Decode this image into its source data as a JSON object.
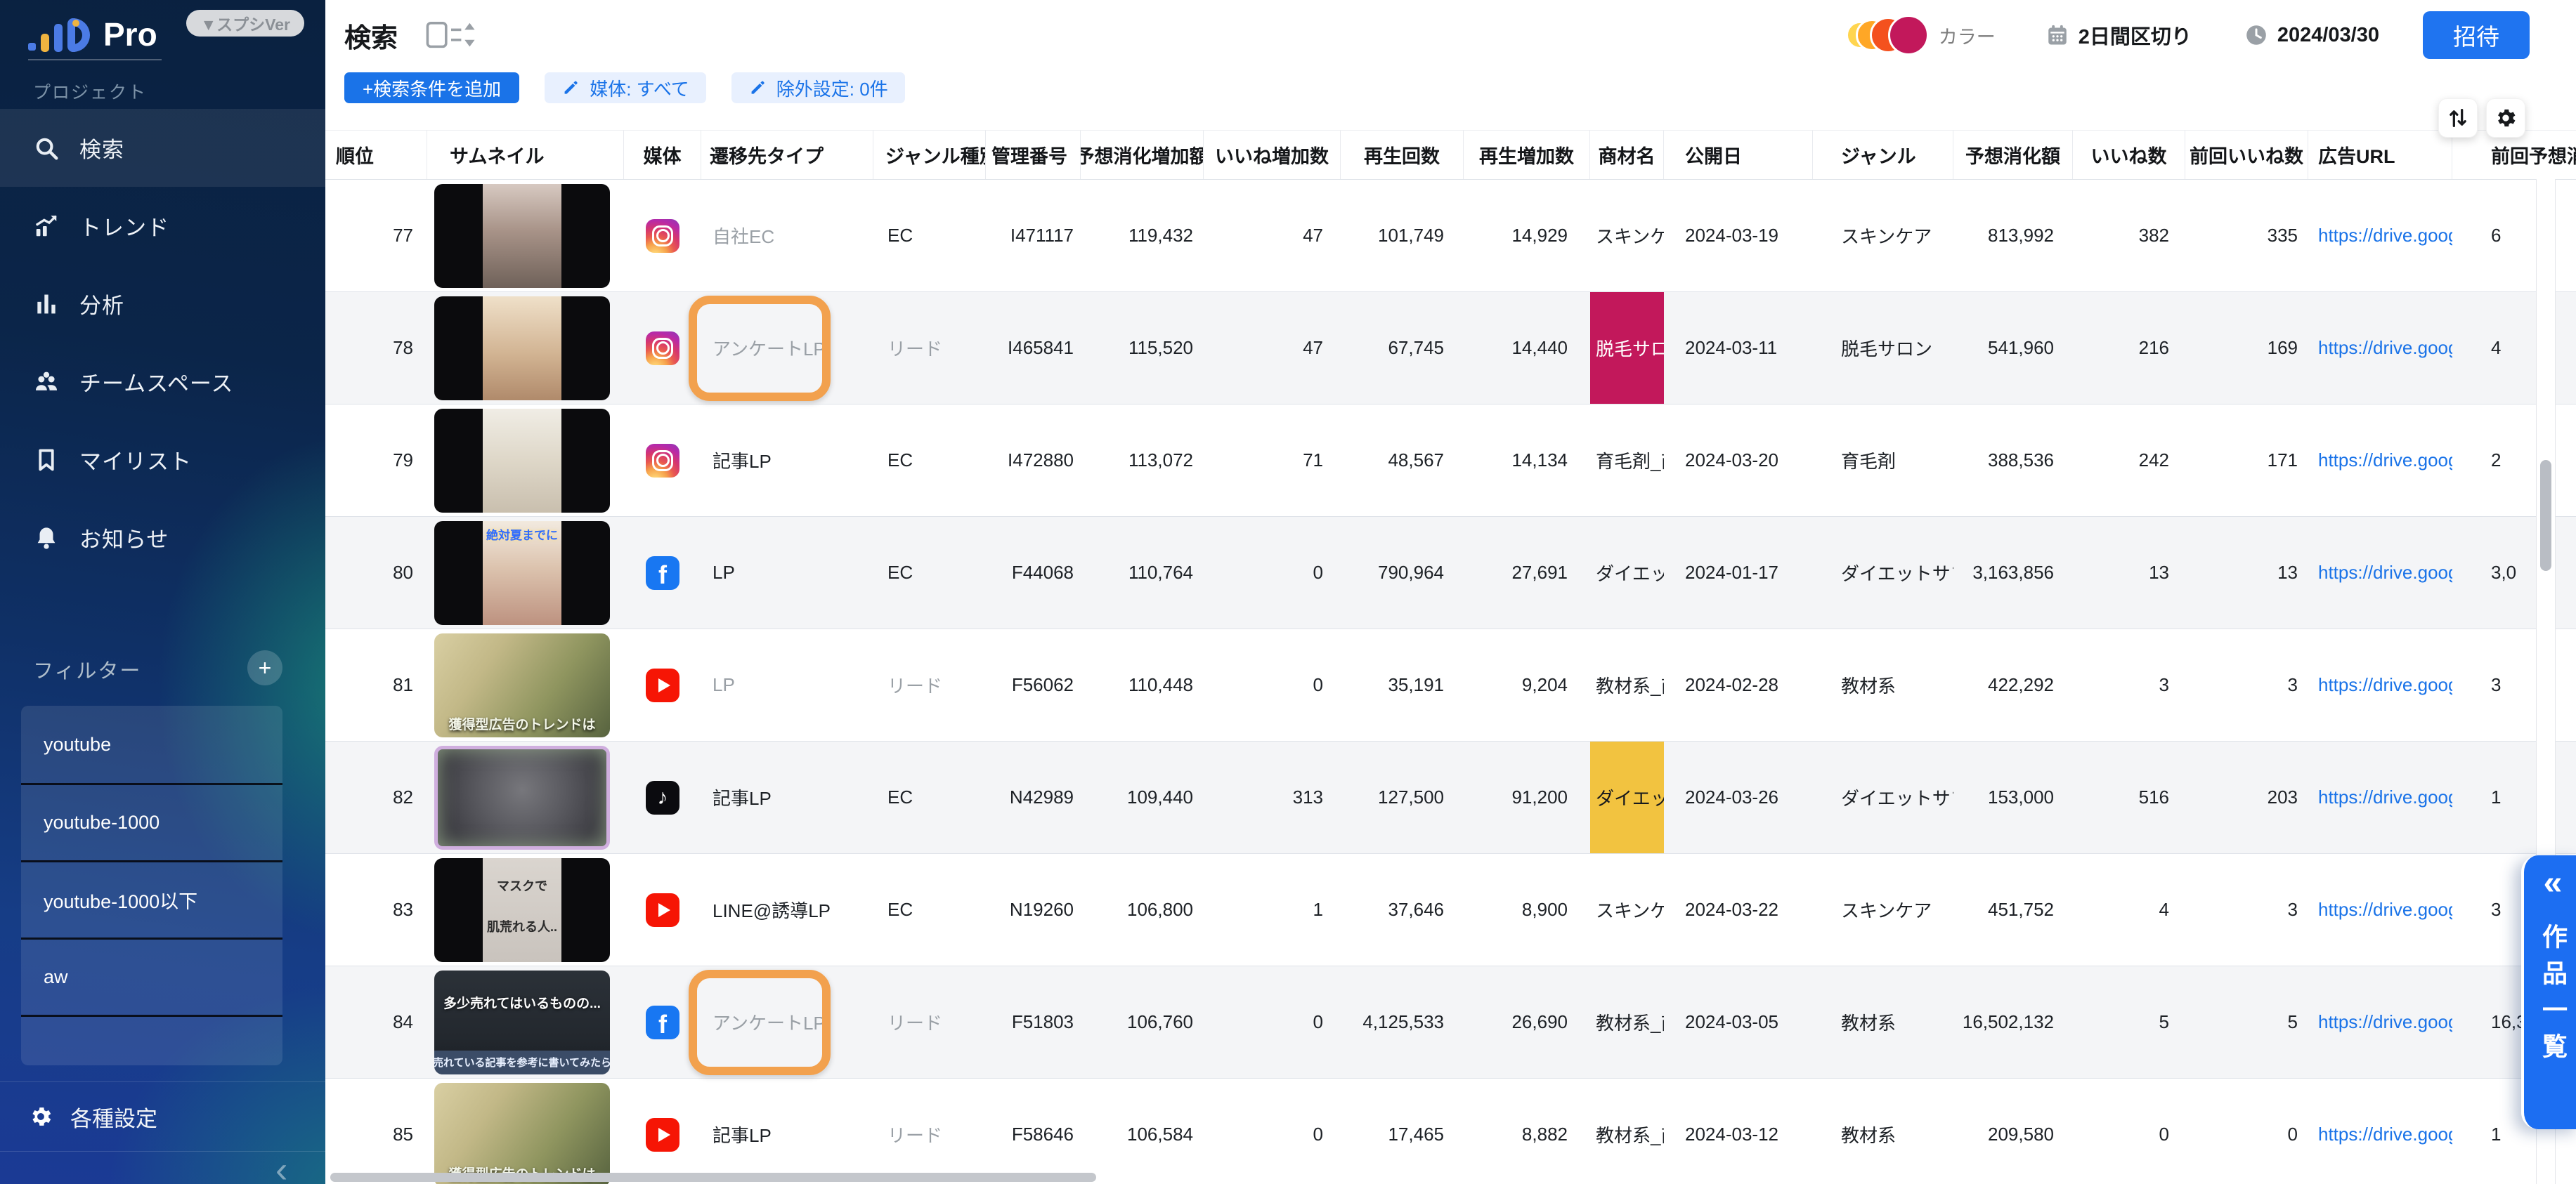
{
  "sidebar": {
    "logo_text": "Pro",
    "version_badge": "▼スプシVer",
    "section_label": "プロジェクト",
    "menu": [
      {
        "label": "検索",
        "icon": "search-icon",
        "active": true
      },
      {
        "label": "トレンド",
        "icon": "trend-icon",
        "active": false
      },
      {
        "label": "分析",
        "icon": "analysis-icon",
        "active": false
      },
      {
        "label": "チームスペース",
        "icon": "team-icon",
        "active": false
      },
      {
        "label": "マイリスト",
        "icon": "mylist-icon",
        "active": false
      },
      {
        "label": "お知らせ",
        "icon": "bell-icon",
        "active": false
      }
    ],
    "filter": {
      "label": "フィルター",
      "add_button": "+",
      "items": [
        "youtube",
        "youtube-1000",
        "youtube-1000以下",
        "aw",
        ""
      ]
    },
    "settings_label": "各種設定",
    "collapse_icon": "‹"
  },
  "toolbar": {
    "title": "検索",
    "add_condition_button": "+検索条件を追加",
    "media_filter_chip": "媒体: すべて",
    "exclusion_chip": "除外設定: 0件",
    "color_label": "カラー",
    "color_swatches": [
      "#FFD54F",
      "#FFA726",
      "#F4511E",
      "#C2185B"
    ],
    "interval_label": "2日間区切り",
    "date_label": "2024/03/30",
    "invite_button": "招待"
  },
  "right_tab": {
    "collapse_icon": "«",
    "label": "作品一覧"
  },
  "accent_colors": {
    "primary_blue": "#1A73E8",
    "highlight_box_orange": "#F2A14E",
    "product_crimson": "#C2185B",
    "product_yellow": "#F2C340"
  },
  "table": {
    "columns": [
      {
        "key": "rank",
        "label": "順位"
      },
      {
        "key": "thumbnail",
        "label": "サムネイル"
      },
      {
        "key": "media",
        "label": "媒体"
      },
      {
        "key": "transition_type",
        "label": "遷移先タイプ"
      },
      {
        "key": "genre_kind",
        "label": "ジャンル種別"
      },
      {
        "key": "manage_id",
        "label": "管理番号"
      },
      {
        "key": "spend_inc",
        "label": "予想消化増加額"
      },
      {
        "key": "like_inc",
        "label": "いいね増加数"
      },
      {
        "key": "plays",
        "label": "再生回数"
      },
      {
        "key": "play_inc",
        "label": "再生増加数"
      },
      {
        "key": "product",
        "label": "商材名"
      },
      {
        "key": "publish_date",
        "label": "公開日"
      },
      {
        "key": "genre",
        "label": "ジャンル"
      },
      {
        "key": "spend",
        "label": "予想消化額"
      },
      {
        "key": "likes",
        "label": "いいね数"
      },
      {
        "key": "prev_likes",
        "label": "前回いいね数"
      },
      {
        "key": "ad_url",
        "label": "広告URL"
      },
      {
        "key": "prev_spend",
        "label": "前回予想消化額"
      }
    ],
    "rows": [
      {
        "rank": "77",
        "thumb": {
          "style": "letterbox",
          "tone": "a",
          "captions": []
        },
        "media": "instagram",
        "transition": {
          "text": "自社EC",
          "muted": true,
          "highlighted": false
        },
        "genre_kind": {
          "text": "EC",
          "muted": false
        },
        "manage_id": "I471117",
        "spend_inc": "119,432",
        "like_inc": "47",
        "plays": "101,749",
        "play_inc": "14,929",
        "product": {
          "text": "スキンケア",
          "bg": ""
        },
        "publish_date": "2024-03-19",
        "genre": "スキンケア",
        "spend": "813,992",
        "likes": "382",
        "prev_likes": "335",
        "ad_url": "https://drive.goog",
        "prev_spend": "6"
      },
      {
        "rank": "78",
        "thumb": {
          "style": "letterbox",
          "tone": "b",
          "captions": []
        },
        "media": "instagram",
        "transition": {
          "text": "アンケートLP",
          "muted": true,
          "highlighted": true
        },
        "genre_kind": {
          "text": "リード",
          "muted": true
        },
        "manage_id": "I465841",
        "spend_inc": "115,520",
        "like_inc": "47",
        "plays": "67,745",
        "play_inc": "14,440",
        "product": {
          "text": "脱毛サロン",
          "bg": "crimson"
        },
        "publish_date": "2024-03-11",
        "genre": "脱毛サロン",
        "spend": "541,960",
        "likes": "216",
        "prev_likes": "169",
        "ad_url": "https://drive.goog",
        "prev_spend": "4"
      },
      {
        "rank": "79",
        "thumb": {
          "style": "letterbox",
          "tone": "c",
          "captions": []
        },
        "media": "instagram",
        "transition": {
          "text": "記事LP",
          "muted": false,
          "highlighted": false
        },
        "genre_kind": {
          "text": "EC",
          "muted": false
        },
        "manage_id": "I472880",
        "spend_inc": "113,072",
        "like_inc": "71",
        "plays": "48,567",
        "play_inc": "14,134",
        "product": {
          "text": "育毛剤_商",
          "bg": ""
        },
        "publish_date": "2024-03-20",
        "genre": "育毛剤",
        "spend": "388,536",
        "likes": "242",
        "prev_likes": "171",
        "ad_url": "https://drive.goog",
        "prev_spend": "2"
      },
      {
        "rank": "80",
        "thumb": {
          "style": "letterbox",
          "tone": "d",
          "captions": [
            "絶対夏までに"
          ]
        },
        "media": "facebook",
        "transition": {
          "text": "LP",
          "muted": false,
          "highlighted": false
        },
        "genre_kind": {
          "text": "EC",
          "muted": false
        },
        "manage_id": "F44068",
        "spend_inc": "110,764",
        "like_inc": "0",
        "plays": "790,964",
        "play_inc": "27,691",
        "product": {
          "text": "ダイエット",
          "bg": ""
        },
        "publish_date": "2024-01-17",
        "genre": "ダイエットサプ",
        "spend": "3,163,856",
        "likes": "13",
        "prev_likes": "13",
        "ad_url": "https://drive.goog",
        "prev_spend": "3,0"
      },
      {
        "rank": "81",
        "thumb": {
          "style": "money",
          "tone": "",
          "captions": [
            "獲得型広告のトレンドは"
          ]
        },
        "media": "youtube",
        "transition": {
          "text": "LP",
          "muted": true,
          "highlighted": false
        },
        "genre_kind": {
          "text": "リード",
          "muted": true
        },
        "manage_id": "F56062",
        "spend_inc": "110,448",
        "like_inc": "0",
        "plays": "35,191",
        "play_inc": "9,204",
        "product": {
          "text": "教材系_商",
          "bg": ""
        },
        "publish_date": "2024-02-28",
        "genre": "教材系",
        "spend": "422,292",
        "likes": "3",
        "prev_likes": "3",
        "ad_url": "https://drive.goog",
        "prev_spend": "3"
      },
      {
        "rank": "82",
        "thumb": {
          "style": "anime",
          "tone": "",
          "captions": []
        },
        "media": "tiktok",
        "transition": {
          "text": "記事LP",
          "muted": false,
          "highlighted": false
        },
        "genre_kind": {
          "text": "EC",
          "muted": false
        },
        "manage_id": "N42989",
        "spend_inc": "109,440",
        "like_inc": "313",
        "plays": "127,500",
        "play_inc": "91,200",
        "product": {
          "text": "ダイエット",
          "bg": "yellow"
        },
        "publish_date": "2024-03-26",
        "genre": "ダイエットサプ",
        "spend": "153,000",
        "likes": "516",
        "prev_likes": "203",
        "ad_url": "https://drive.goog",
        "prev_spend": "1"
      },
      {
        "rank": "83",
        "thumb": {
          "style": "letterbox",
          "tone": "mask",
          "captions": [
            "マスクで",
            "肌荒れる人.."
          ]
        },
        "media": "youtube",
        "transition": {
          "text": "LINE@誘導LP",
          "muted": false,
          "highlighted": false
        },
        "genre_kind": {
          "text": "EC",
          "muted": false
        },
        "manage_id": "N19260",
        "spend_inc": "106,800",
        "like_inc": "1",
        "plays": "37,646",
        "play_inc": "8,900",
        "product": {
          "text": "スキンケア",
          "bg": ""
        },
        "publish_date": "2024-03-22",
        "genre": "スキンケア",
        "spend": "451,752",
        "likes": "4",
        "prev_likes": "3",
        "ad_url": "https://drive.goog",
        "prev_spend": "3"
      },
      {
        "rank": "84",
        "thumb": {
          "style": "dark",
          "tone": "",
          "captions": [
            "多少売れてはいるものの...",
            "売れている記事を参考に書いてみたら"
          ]
        },
        "media": "facebook",
        "transition": {
          "text": "アンケートLP",
          "muted": true,
          "highlighted": true
        },
        "genre_kind": {
          "text": "リード",
          "muted": true
        },
        "manage_id": "F51803",
        "spend_inc": "106,760",
        "like_inc": "0",
        "plays": "4,125,533",
        "play_inc": "26,690",
        "product": {
          "text": "教材系_商",
          "bg": ""
        },
        "publish_date": "2024-03-05",
        "genre": "教材系",
        "spend": "16,502,132",
        "likes": "5",
        "prev_likes": "5",
        "ad_url": "https://drive.goog",
        "prev_spend": "16,3"
      },
      {
        "rank": "85",
        "thumb": {
          "style": "money",
          "tone": "",
          "captions": [
            "獲得型広告のトレンドは"
          ]
        },
        "media": "youtube",
        "transition": {
          "text": "記事LP",
          "muted": false,
          "highlighted": false
        },
        "genre_kind": {
          "text": "リード",
          "muted": true
        },
        "manage_id": "F58646",
        "spend_inc": "106,584",
        "like_inc": "0",
        "plays": "17,465",
        "play_inc": "8,882",
        "product": {
          "text": "教材系_商",
          "bg": ""
        },
        "publish_date": "2024-03-12",
        "genre": "教材系",
        "spend": "209,580",
        "likes": "0",
        "prev_likes": "0",
        "ad_url": "https://drive.goog",
        "prev_spend": "1"
      }
    ]
  }
}
